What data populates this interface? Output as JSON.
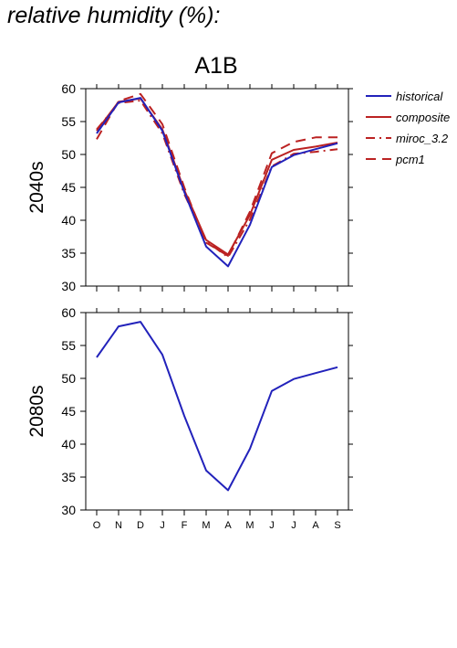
{
  "page": {
    "title": "relative humidity (%):"
  },
  "colors": {
    "historical": "#2222bb",
    "scenario": "#bb2222",
    "axis": "#000000"
  },
  "chart_data": [
    {
      "type": "line",
      "scenario_title": "A1B",
      "ylabel": "2040s",
      "ylim": [
        30,
        60
      ],
      "yticks": [
        30,
        35,
        40,
        45,
        50,
        55,
        60
      ],
      "categories": [
        "O",
        "N",
        "D",
        "J",
        "F",
        "M",
        "A",
        "M",
        "J",
        "J",
        "A",
        "S"
      ],
      "show_category_labels": false,
      "legend": "right",
      "series": [
        {
          "name": "historical",
          "color": "#2222bb",
          "style": "solid",
          "values": [
            53.2,
            57.9,
            58.6,
            53.6,
            44.3,
            36.0,
            33.0,
            39.3,
            48.1,
            49.9,
            50.8,
            51.7
          ]
        },
        {
          "name": "composite",
          "color": "#bb2222",
          "style": "solid",
          "values": [
            53.6,
            58.0,
            58.5,
            53.8,
            44.6,
            37.0,
            34.8,
            40.8,
            49.2,
            50.7,
            51.2,
            51.8
          ]
        },
        {
          "name": "miroc_3.2",
          "color": "#bb2222",
          "style": "dashdot",
          "values": [
            53.8,
            57.8,
            58.2,
            53.2,
            44.0,
            36.8,
            34.4,
            40.1,
            48.2,
            50.1,
            50.4,
            50.8
          ]
        },
        {
          "name": "pcm1",
          "color": "#bb2222",
          "style": "dashed",
          "values": [
            52.3,
            58.1,
            59.2,
            54.6,
            45.0,
            36.6,
            34.6,
            41.3,
            50.2,
            51.9,
            52.6,
            52.6
          ]
        }
      ]
    },
    {
      "type": "line",
      "ylabel": "2080s",
      "ylim": [
        30,
        60
      ],
      "yticks": [
        30,
        35,
        40,
        45,
        50,
        55,
        60
      ],
      "categories": [
        "O",
        "N",
        "D",
        "J",
        "F",
        "M",
        "A",
        "M",
        "J",
        "J",
        "A",
        "S"
      ],
      "show_category_labels": true,
      "series": [
        {
          "name": "historical",
          "color": "#2222bb",
          "style": "solid",
          "values": [
            53.2,
            57.9,
            58.6,
            53.6,
            44.3,
            36.0,
            33.0,
            39.3,
            48.1,
            49.9,
            50.8,
            51.7
          ]
        }
      ]
    }
  ]
}
